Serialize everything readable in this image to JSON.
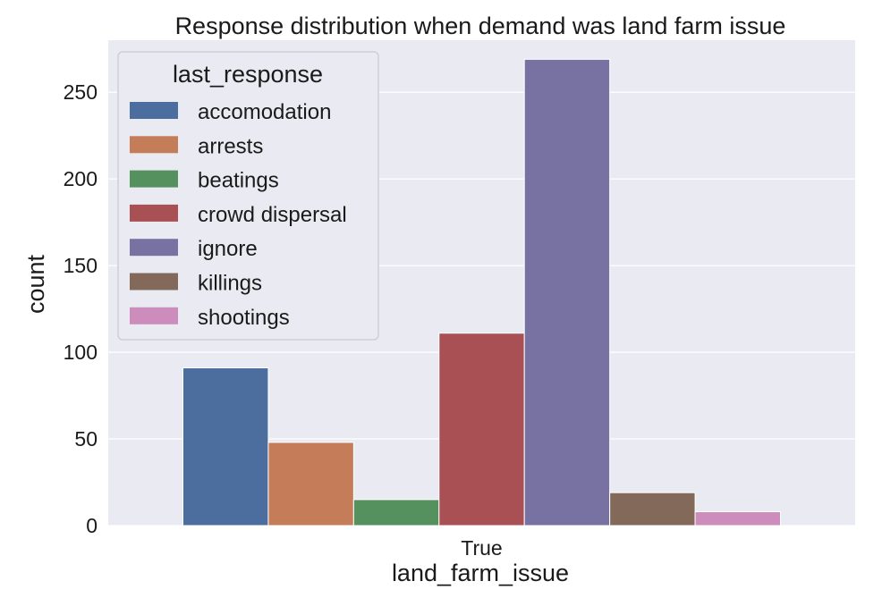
{
  "chart_data": {
    "type": "bar",
    "title": "Response distribution when demand was land farm issue",
    "xlabel": "land_farm_issue",
    "ylabel": "count",
    "categories": [
      "True"
    ],
    "ylim": [
      0,
      280
    ],
    "yticks": [
      0,
      50,
      100,
      150,
      200,
      250
    ],
    "grid": true,
    "legend": {
      "title": "last_response",
      "placement": "top-left"
    },
    "series": [
      {
        "name": "accomodation",
        "values": [
          91
        ],
        "color": "#4c6e9f"
      },
      {
        "name": "arrests",
        "values": [
          48
        ],
        "color": "#c57c59"
      },
      {
        "name": "beatings",
        "values": [
          15
        ],
        "color": "#55905f"
      },
      {
        "name": "crowd dispersal",
        "values": [
          111
        ],
        "color": "#a85053"
      },
      {
        "name": "ignore",
        "values": [
          269
        ],
        "color": "#7872a2"
      },
      {
        "name": "killings",
        "values": [
          19
        ],
        "color": "#83695a"
      },
      {
        "name": "shootings",
        "values": [
          8
        ],
        "color": "#cc8dbc"
      }
    ]
  },
  "colors": {
    "plot_background": "#eaeaf2",
    "grid": "#ffffff"
  }
}
